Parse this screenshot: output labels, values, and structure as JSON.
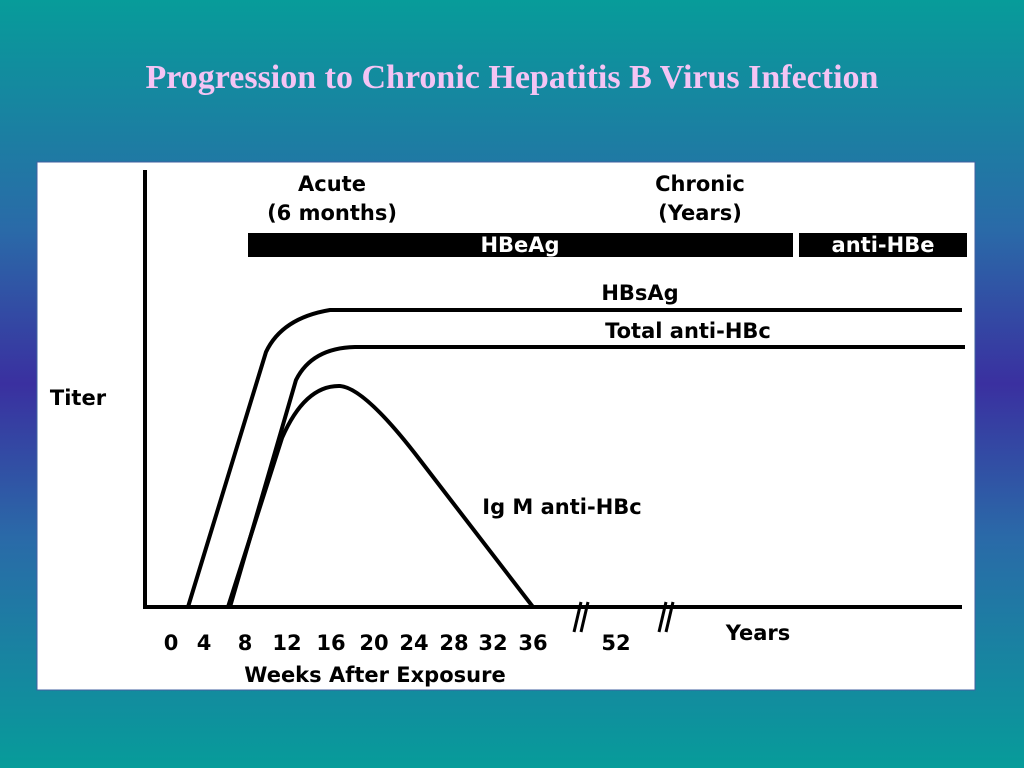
{
  "title": "Progression to Chronic Hepatitis B Virus Infection",
  "phases": [
    {
      "label": "Acute",
      "detail": "(6 months)"
    },
    {
      "label": "Chronic",
      "detail": "(Years)"
    }
  ],
  "bars": [
    "HBeAg",
    "anti-HBe"
  ],
  "curves": [
    "HBsAg",
    "Total anti-HBc",
    "Ig M anti-HBc"
  ],
  "y_axis_label": "Titer",
  "x_ticks": [
    "0",
    "4",
    "8",
    "12",
    "16",
    "20",
    "24",
    "28",
    "32",
    "36",
    "52"
  ],
  "x_unit_label": "Years",
  "x_axis_label": "Weeks After Exposure"
}
